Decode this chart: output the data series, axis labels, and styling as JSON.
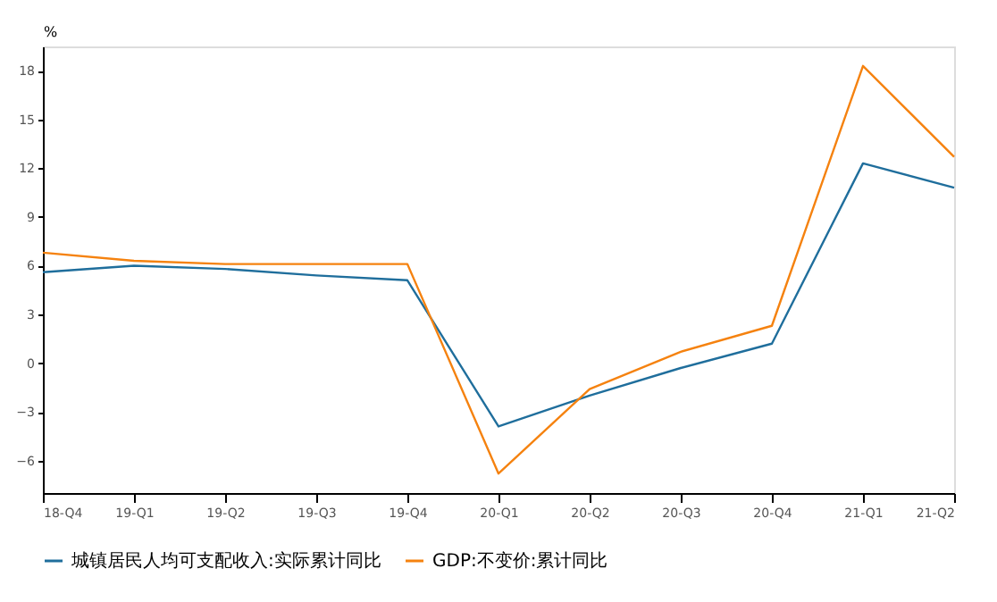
{
  "chart_data": {
    "type": "line",
    "ylabel": "%",
    "categories": [
      "18-Q4",
      "19-Q1",
      "19-Q2",
      "19-Q3",
      "19-Q4",
      "20-Q1",
      "20-Q2",
      "20-Q3",
      "20-Q4",
      "21-Q1",
      "21-Q2"
    ],
    "series": [
      {
        "name": "城镇居民人均可支配收入:实际累计同比",
        "color": "#1f6e9c",
        "values": [
          5.6,
          6.0,
          5.8,
          5.4,
          5.1,
          -3.9,
          -2.0,
          -0.3,
          1.2,
          12.3,
          10.8
        ]
      },
      {
        "name": "GDP:不变价:累计同比",
        "color": "#f5820f",
        "values": [
          6.8,
          6.3,
          6.1,
          6.1,
          6.1,
          -6.8,
          -1.6,
          0.7,
          2.3,
          18.3,
          12.7
        ]
      }
    ],
    "ylim": [
      -8,
      19.5
    ],
    "yticks": [
      -6,
      -3,
      0,
      3,
      6,
      9,
      12,
      15,
      18
    ],
    "grid": false,
    "legend": "bottom",
    "marker": "none",
    "line_style": "solid"
  }
}
